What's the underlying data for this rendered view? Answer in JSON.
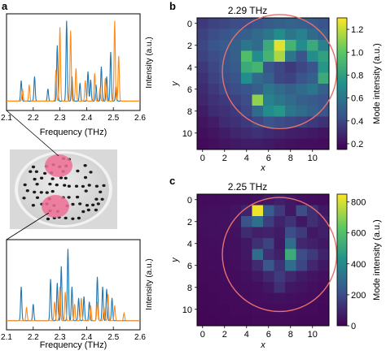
{
  "panel_letters": {
    "a": "a",
    "b": "b",
    "c": "c"
  },
  "colors": {
    "series_blue": "#1f77b4",
    "series_orange": "#ff8c1a",
    "circle": "#e8706e",
    "disk_spot": "#ee6e95",
    "colormap": [
      "#440154",
      "#3b528b",
      "#21918c",
      "#5ec962",
      "#fde725"
    ]
  },
  "chart_data": [
    {
      "type": "line",
      "panel": "a-top",
      "xlabel": "Frequency (THz)",
      "ylabel": "Intensity (a.u.)",
      "xlim": [
        2.1,
        2.6
      ],
      "xticks": [
        "2.1",
        "2.2",
        "2.3",
        "2.4",
        "2.5",
        "2.6"
      ],
      "series": [
        {
          "color": "#1f77b4",
          "peaks": [
            [
              2.155,
              0.25
            ],
            [
              2.205,
              0.3
            ],
            [
              2.255,
              0.15
            ],
            [
              2.29,
              0.68
            ],
            [
              2.325,
              0.98
            ],
            [
              2.345,
              0.3
            ],
            [
              2.375,
              0.22
            ],
            [
              2.405,
              0.36
            ],
            [
              2.415,
              0.26
            ],
            [
              2.435,
              0.2
            ],
            [
              2.455,
              0.42
            ],
            [
              2.475,
              0.3
            ],
            [
              2.49,
              0.6
            ],
            [
              2.51,
              0.18
            ]
          ]
        },
        {
          "color": "#ff8c1a",
          "peaks": [
            [
              2.16,
              0.15
            ],
            [
              2.185,
              0.2
            ],
            [
              2.285,
              0.38
            ],
            [
              2.3,
              0.9
            ],
            [
              2.34,
              0.86
            ],
            [
              2.36,
              0.4
            ],
            [
              2.395,
              0.25
            ],
            [
              2.43,
              0.34
            ],
            [
              2.45,
              0.16
            ],
            [
              2.47,
              0.28
            ],
            [
              2.505,
              0.98
            ],
            [
              2.52,
              0.55
            ]
          ]
        }
      ]
    },
    {
      "type": "line",
      "panel": "a-bottom",
      "xlabel": "Frequency (THz)",
      "ylabel": "Intensity (a.u.)",
      "xlim": [
        2.1,
        2.6
      ],
      "xticks": [
        "2.1",
        "2.2",
        "2.3",
        "2.4",
        "2.5",
        "2.6"
      ],
      "series": [
        {
          "color": "#1f77b4",
          "peaks": [
            [
              2.155,
              0.45
            ],
            [
              2.2,
              0.22
            ],
            [
              2.265,
              0.55
            ],
            [
              2.29,
              0.5
            ],
            [
              2.305,
              0.72
            ],
            [
              2.33,
              0.95
            ],
            [
              2.345,
              0.45
            ],
            [
              2.37,
              0.3
            ],
            [
              2.39,
              0.32
            ],
            [
              2.41,
              0.25
            ],
            [
              2.44,
              0.58
            ],
            [
              2.46,
              0.45
            ],
            [
              2.475,
              0.42
            ],
            [
              2.495,
              0.3
            ]
          ]
        },
        {
          "color": "#ff8c1a",
          "peaks": [
            [
              2.175,
              0.18
            ],
            [
              2.28,
              0.25
            ],
            [
              2.3,
              0.45
            ],
            [
              2.32,
              0.38
            ],
            [
              2.355,
              0.22
            ],
            [
              2.38,
              0.3
            ],
            [
              2.415,
              0.2
            ],
            [
              2.44,
              0.25
            ],
            [
              2.465,
              0.18
            ],
            [
              2.48,
              0.35
            ],
            [
              2.505,
              0.2
            ],
            [
              2.54,
              0.1
            ]
          ]
        }
      ]
    },
    {
      "type": "heatmap",
      "panel": "b",
      "title": "2.29 THz",
      "xlabel": "x",
      "ylabel": "y",
      "xticks": [
        "0",
        "2",
        "4",
        "6",
        "8",
        "10"
      ],
      "yticks": [
        "0",
        "2",
        "4",
        "6",
        "8",
        "10"
      ],
      "colorbar_label": "Mode intensity (a.u.)",
      "colorbar_ticks": [
        "0.2",
        "0.4",
        "0.6",
        "0.8",
        "1.0",
        "1.2"
      ],
      "vmin": 0.15,
      "vmax": 1.3,
      "circle": {
        "cx": 7.0,
        "cy": 4.4,
        "r": 5.2
      },
      "values": [
        [
          0.35,
          0.38,
          0.4,
          0.42,
          0.42,
          0.45,
          0.48,
          0.5,
          0.52,
          0.5,
          0.48,
          0.45
        ],
        [
          0.38,
          0.42,
          0.45,
          0.48,
          0.5,
          0.55,
          0.6,
          0.7,
          0.6,
          0.65,
          0.55,
          0.5
        ],
        [
          0.4,
          0.45,
          0.48,
          0.5,
          0.6,
          0.55,
          0.85,
          1.25,
          0.9,
          0.7,
          0.85,
          0.65
        ],
        [
          0.38,
          0.42,
          0.45,
          0.5,
          0.95,
          0.7,
          0.9,
          1.15,
          0.6,
          0.45,
          0.7,
          0.8
        ],
        [
          0.35,
          0.4,
          0.45,
          0.48,
          0.85,
          0.9,
          0.45,
          0.4,
          0.35,
          0.4,
          0.45,
          0.75
        ],
        [
          0.32,
          0.38,
          0.42,
          0.45,
          0.7,
          0.55,
          0.5,
          0.4,
          0.38,
          0.45,
          0.5,
          0.85
        ],
        [
          0.3,
          0.35,
          0.4,
          0.42,
          0.45,
          0.5,
          0.6,
          0.55,
          0.5,
          0.55,
          0.6,
          0.5
        ],
        [
          0.28,
          0.32,
          0.35,
          0.38,
          0.42,
          1.1,
          0.65,
          0.6,
          0.55,
          0.5,
          0.48,
          0.45
        ],
        [
          0.25,
          0.3,
          0.32,
          0.35,
          0.4,
          0.55,
          0.7,
          0.75,
          0.6,
          0.55,
          0.5,
          0.45
        ],
        [
          0.22,
          0.25,
          0.3,
          0.32,
          0.35,
          0.4,
          0.45,
          0.42,
          0.4,
          0.38,
          0.35,
          0.32
        ],
        [
          0.2,
          0.22,
          0.25,
          0.28,
          0.3,
          0.32,
          0.3,
          0.28,
          0.26,
          0.25,
          0.24,
          0.22
        ],
        [
          0.18,
          0.2,
          0.22,
          0.24,
          0.25,
          0.25,
          0.24,
          0.22,
          0.21,
          0.2,
          0.2,
          0.19
        ]
      ]
    },
    {
      "type": "heatmap",
      "panel": "c",
      "title": "2.25 THz",
      "xlabel": "x",
      "ylabel": "y",
      "xticks": [
        "0",
        "2",
        "4",
        "6",
        "8",
        "10"
      ],
      "yticks": [
        "0",
        "2",
        "4",
        "6",
        "8",
        "10"
      ],
      "colorbar_label": "Mode intensity (a.u.)",
      "colorbar_ticks": [
        "0",
        "200",
        "400",
        "600",
        "800"
      ],
      "vmin": 0,
      "vmax": 850,
      "circle": {
        "cx": 7.0,
        "cy": 5.0,
        "r": 5.2
      },
      "values": [
        [
          30,
          30,
          35,
          35,
          40,
          45,
          60,
          80,
          60,
          40,
          35,
          30
        ],
        [
          35,
          40,
          40,
          50,
          90,
          830,
          250,
          150,
          60,
          200,
          120,
          60
        ],
        [
          40,
          40,
          45,
          50,
          220,
          310,
          160,
          90,
          130,
          60,
          120,
          80
        ],
        [
          35,
          40,
          40,
          45,
          110,
          80,
          90,
          70,
          200,
          150,
          60,
          80
        ],
        [
          30,
          35,
          40,
          40,
          60,
          120,
          170,
          60,
          300,
          100,
          80,
          60
        ],
        [
          30,
          30,
          35,
          40,
          60,
          300,
          120,
          80,
          520,
          200,
          150,
          90
        ],
        [
          25,
          30,
          30,
          35,
          50,
          110,
          230,
          130,
          300,
          180,
          100,
          60
        ],
        [
          25,
          25,
          30,
          30,
          40,
          60,
          100,
          150,
          100,
          70,
          50,
          40
        ],
        [
          20,
          25,
          25,
          30,
          35,
          40,
          60,
          120,
          60,
          50,
          40,
          30
        ],
        [
          20,
          20,
          25,
          25,
          30,
          35,
          40,
          45,
          40,
          35,
          30,
          25
        ],
        [
          15,
          20,
          20,
          25,
          25,
          30,
          30,
          30,
          30,
          25,
          25,
          20
        ],
        [
          15,
          15,
          20,
          20,
          20,
          25,
          25,
          25,
          25,
          20,
          20,
          20
        ]
      ]
    }
  ]
}
